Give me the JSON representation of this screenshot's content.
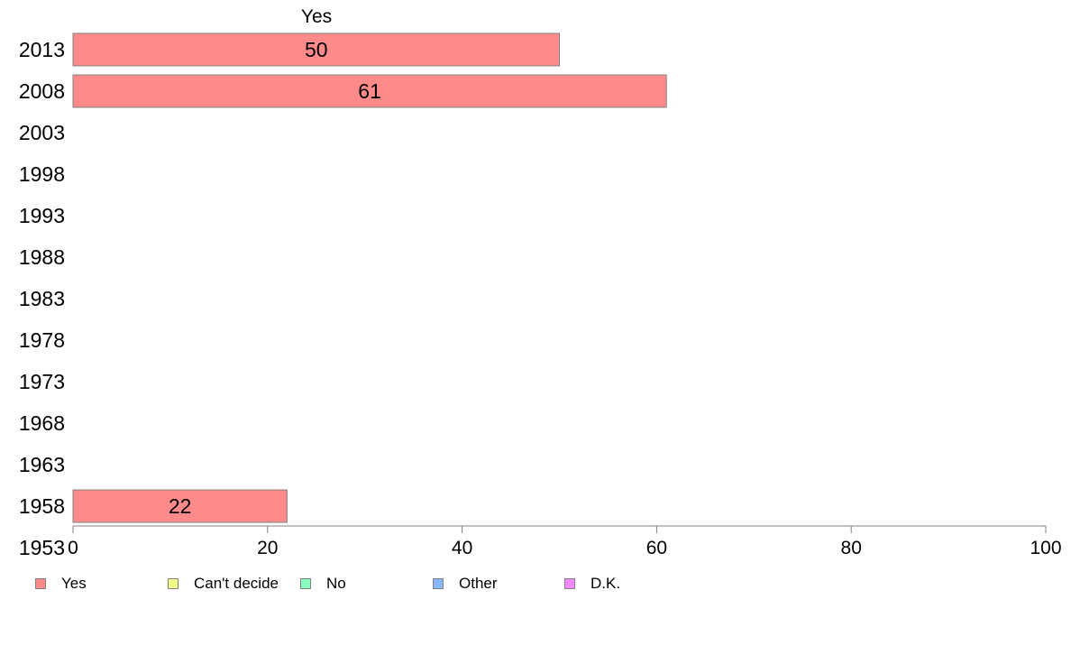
{
  "chart_data": {
    "type": "bar",
    "orientation": "horizontal",
    "stacked": true,
    "categories": [
      "2013",
      "2008",
      "2003",
      "1998",
      "1993",
      "1988",
      "1983",
      "1978",
      "1973",
      "1968",
      "1963",
      "1958",
      "1953"
    ],
    "series": [
      {
        "name": "Yes",
        "color": "#ff8a8a",
        "values": [
          50,
          61,
          null,
          null,
          null,
          null,
          null,
          null,
          null,
          null,
          null,
          22,
          null
        ]
      },
      {
        "name": "Can't decide",
        "color": "#f2ff8a",
        "values": [
          null,
          null,
          null,
          null,
          null,
          null,
          null,
          null,
          null,
          null,
          null,
          null,
          null
        ]
      },
      {
        "name": "No",
        "color": "#8affc0",
        "values": [
          null,
          null,
          null,
          null,
          null,
          null,
          null,
          null,
          null,
          null,
          null,
          null,
          null
        ]
      },
      {
        "name": "Other",
        "color": "#8ab8ff",
        "values": [
          null,
          null,
          null,
          null,
          null,
          null,
          null,
          null,
          null,
          null,
          null,
          null,
          null
        ]
      },
      {
        "name": "D.K.",
        "color": "#f08aff",
        "values": [
          null,
          null,
          null,
          null,
          null,
          null,
          null,
          null,
          null,
          null,
          null,
          null,
          null
        ]
      }
    ],
    "data_labels": [
      "50",
      "61",
      "",
      "",
      "",
      "",
      "",
      "",
      "",
      "",
      "",
      "22",
      ""
    ],
    "column_header": "Yes",
    "xlim": [
      0,
      100
    ],
    "xticks": [
      0,
      20,
      40,
      60,
      80,
      100
    ],
    "grid": false,
    "legend_position": "bottom",
    "bar_edge_color": "#808080",
    "axis_color": "#808080"
  }
}
